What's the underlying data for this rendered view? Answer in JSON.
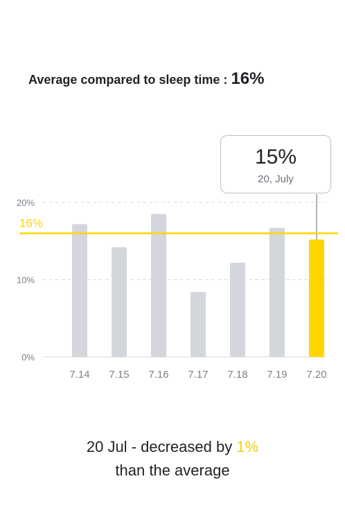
{
  "headline": {
    "text": "Average compared to sleep time : ",
    "value": "16%"
  },
  "tooltip": {
    "value": "15%",
    "date": "20, July"
  },
  "summary": {
    "prefix": "20 Jul - decreased by ",
    "highlight": "1%",
    "suffix": "than the average"
  },
  "colors": {
    "bar": "#d3d6da",
    "highlight_bar": "#ffd600",
    "average_line": "#ffd600",
    "grid": "#d6d9dd",
    "axis_text": "#7b8088"
  },
  "chart_data": {
    "type": "bar",
    "categories": [
      "7.14",
      "7.15",
      "7.16",
      "7.17",
      "7.18",
      "7.19",
      "7.20"
    ],
    "values": [
      17.2,
      14.2,
      18.5,
      8.4,
      12.2,
      16.7,
      15.2
    ],
    "highlight_index": 6,
    "yticks": [
      "0%",
      "10%",
      "20%"
    ],
    "ytick_values": [
      0,
      10,
      20
    ],
    "ylim": [
      0,
      20
    ],
    "average": 16,
    "average_label": "16%",
    "grid": true
  }
}
